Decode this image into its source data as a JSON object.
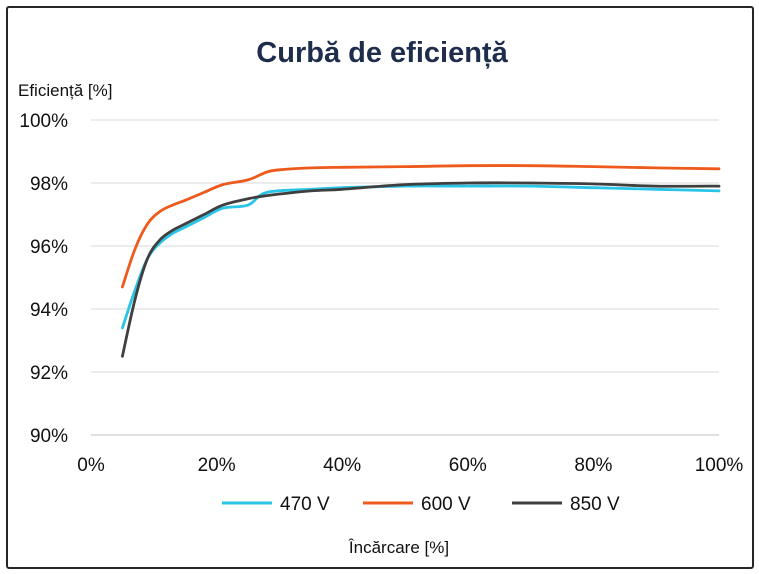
{
  "chart_data": {
    "type": "line",
    "title": "Curbă de eficiență",
    "ylabel": "Eficiență [%]",
    "xlabel": "Încărcare [%]",
    "xlim": [
      0,
      100
    ],
    "ylim": [
      90,
      100
    ],
    "x_ticks": [
      0,
      20,
      40,
      60,
      80,
      100
    ],
    "x_tick_labels": [
      "0%",
      "20%",
      "40%",
      "60%",
      "80%",
      "100%"
    ],
    "y_ticks": [
      90,
      92,
      94,
      96,
      98,
      100
    ],
    "y_tick_labels": [
      "90%",
      "92%",
      "94%",
      "96%",
      "98%",
      "100%"
    ],
    "grid": "horizontal",
    "legend_position": "bottom",
    "series": [
      {
        "name": "470 V",
        "color": "#29c4e6",
        "x": [
          5,
          7,
          9,
          11,
          13,
          15,
          18,
          21,
          25,
          28,
          35,
          40,
          50,
          60,
          70,
          80,
          90,
          100
        ],
        "y": [
          93.4,
          94.6,
          95.6,
          96.1,
          96.4,
          96.6,
          96.9,
          97.2,
          97.3,
          97.7,
          97.8,
          97.85,
          97.9,
          97.9,
          97.9,
          97.85,
          97.8,
          97.75
        ]
      },
      {
        "name": "600 V",
        "color": "#ee5a1b",
        "x": [
          5,
          7,
          9,
          11,
          13,
          15,
          18,
          21,
          25,
          28,
          30,
          35,
          40,
          50,
          60,
          70,
          80,
          90,
          100
        ],
        "y": [
          94.7,
          95.9,
          96.7,
          97.1,
          97.3,
          97.45,
          97.7,
          97.95,
          98.1,
          98.35,
          98.42,
          98.48,
          98.5,
          98.52,
          98.55,
          98.55,
          98.52,
          98.48,
          98.45
        ]
      },
      {
        "name": "850 V",
        "color": "#3f3f3f",
        "x": [
          5,
          7,
          9,
          11,
          13,
          15,
          18,
          21,
          25,
          28,
          35,
          40,
          50,
          60,
          70,
          80,
          90,
          100
        ],
        "y": [
          92.5,
          94.3,
          95.6,
          96.2,
          96.5,
          96.7,
          97.0,
          97.3,
          97.5,
          97.6,
          97.75,
          97.8,
          97.95,
          98.0,
          98.0,
          97.97,
          97.9,
          97.9
        ]
      }
    ]
  }
}
